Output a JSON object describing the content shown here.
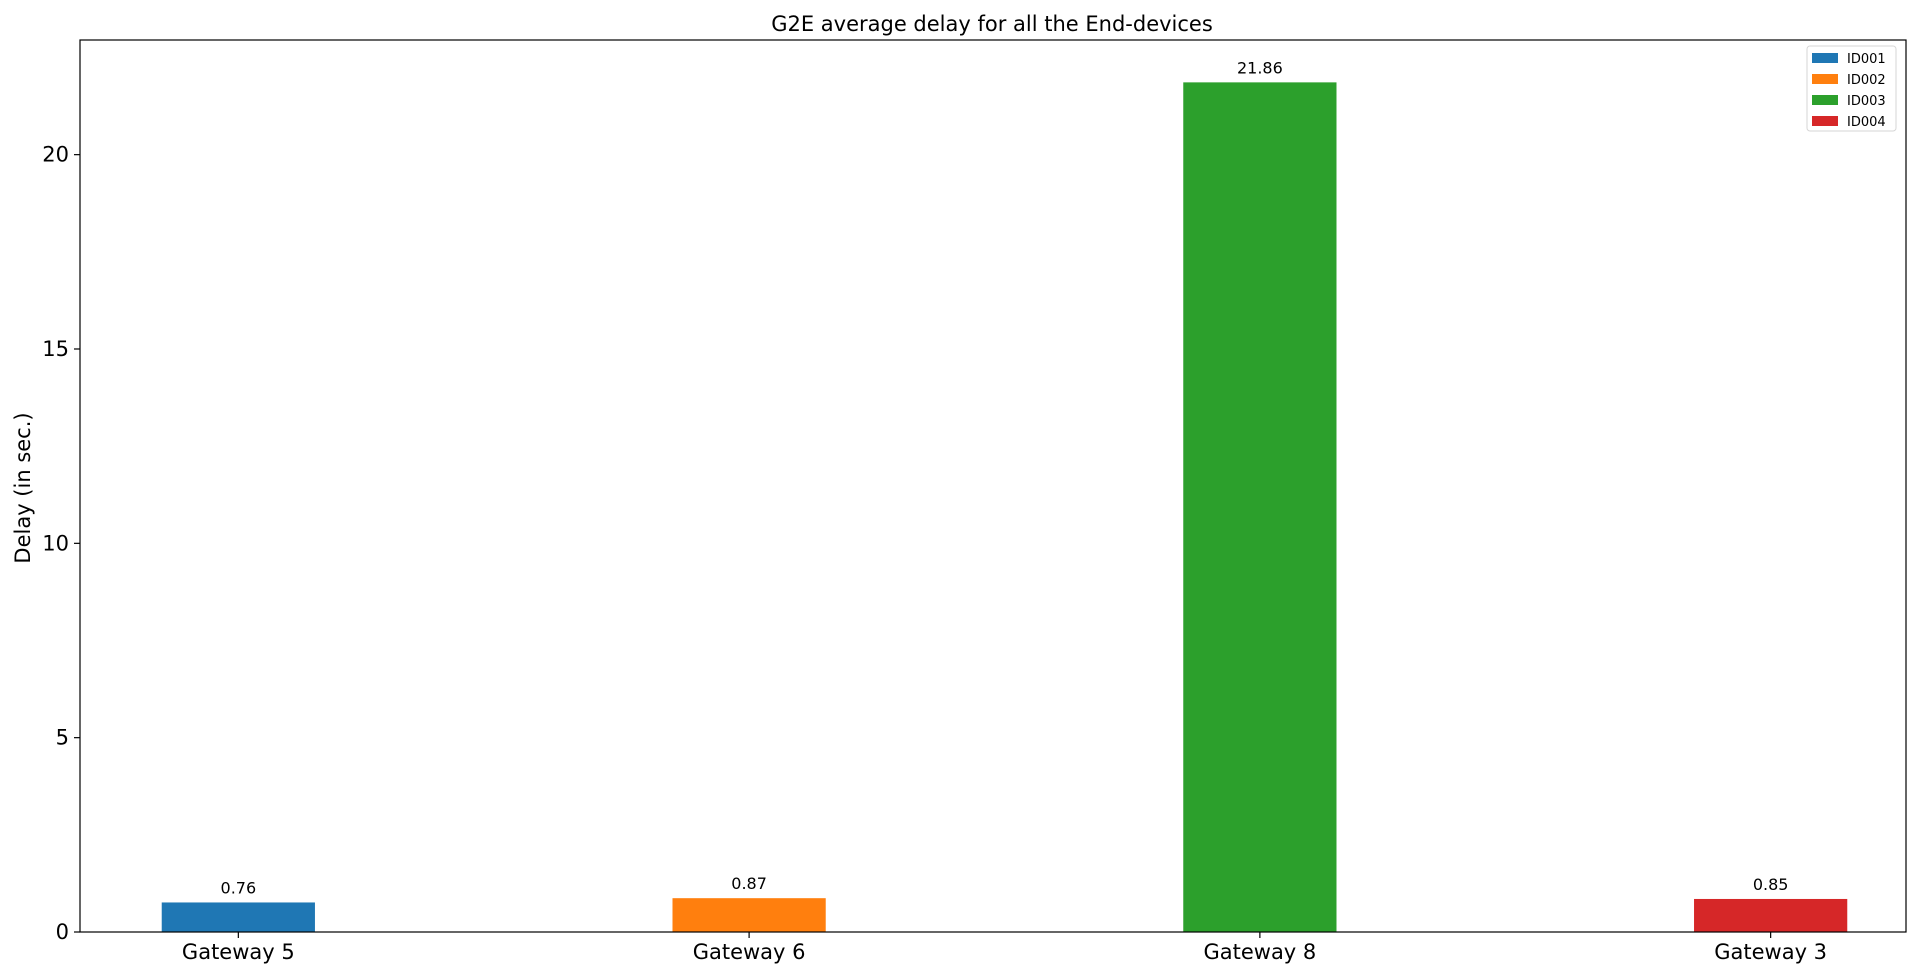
{
  "chart_data": {
    "type": "bar",
    "title": "G2E average delay for all the End-devices",
    "xlabel": "",
    "ylabel": "Delay (in sec.)",
    "categories": [
      "Gateway 5",
      "Gateway 6",
      "Gateway 8",
      "Gateway 3"
    ],
    "series": [
      {
        "name": "ID001",
        "category": "Gateway 5",
        "value": 0.76,
        "label": "0.76",
        "color": "#1f77b4"
      },
      {
        "name": "ID002",
        "category": "Gateway 6",
        "value": 0.87,
        "label": "0.87",
        "color": "#ff7f0e"
      },
      {
        "name": "ID003",
        "category": "Gateway 8",
        "value": 21.86,
        "label": "21.86",
        "color": "#2ca02c"
      },
      {
        "name": "ID004",
        "category": "Gateway 3",
        "value": 0.85,
        "label": "0.85",
        "color": "#d62728"
      }
    ],
    "ylim": [
      0,
      22.95
    ],
    "yticks": [
      0,
      5,
      10,
      15,
      20
    ],
    "ytick_labels": [
      "0",
      "5",
      "10",
      "15",
      "20"
    ],
    "grid": false,
    "legend_position": "top-right"
  }
}
